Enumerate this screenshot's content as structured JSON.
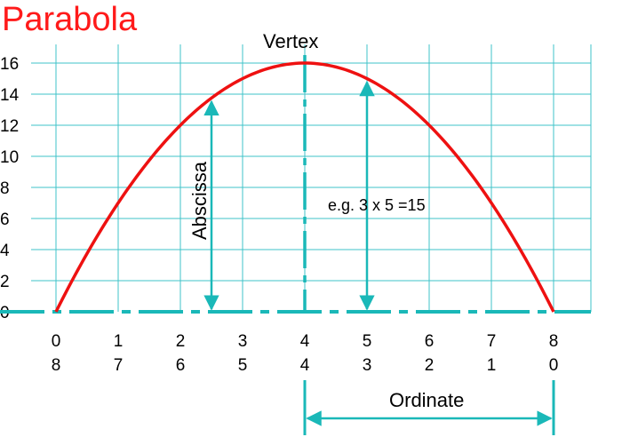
{
  "title": "Parabola",
  "colors": {
    "grid": "#3fc3c9",
    "accent": "#1ab8b8",
    "curve": "#ee1111",
    "title": "#ff1a1a"
  },
  "y_ticks": [
    "0",
    "2",
    "4",
    "6",
    "8",
    "10",
    "12",
    "14",
    "16"
  ],
  "x_ticks_top": [
    "0",
    "1",
    "2",
    "3",
    "4",
    "5",
    "6",
    "7",
    "8"
  ],
  "x_ticks_bottom": [
    "8",
    "7",
    "6",
    "5",
    "4",
    "3",
    "2",
    "1",
    "0"
  ],
  "labels": {
    "vertex": "Vertex",
    "abscissa": "Abscissa",
    "ordinate": "Ordinate",
    "example": "e.g. 3 x 5 =15"
  },
  "curve": {
    "equation_values": [
      [
        0,
        0
      ],
      [
        1,
        7
      ],
      [
        2,
        12
      ],
      [
        3,
        15
      ],
      [
        4,
        16
      ],
      [
        5,
        15
      ],
      [
        6,
        12
      ],
      [
        7,
        7
      ],
      [
        8,
        0
      ]
    ]
  },
  "abscissa_arrow": {
    "x": 2.5,
    "y_from": 0,
    "y_to": 13.75
  },
  "example_arrow": {
    "x": 5,
    "y_from": 0,
    "y_to": 15
  },
  "ordinate_arrow": {
    "x_from": 4,
    "x_to": 8
  }
}
